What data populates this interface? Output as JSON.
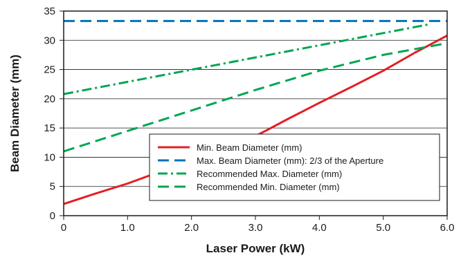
{
  "chart_data": {
    "type": "line",
    "title": "",
    "xlabel": "Laser Power (kW)",
    "ylabel": "Beam Diameter (mm)",
    "xlim": [
      0,
      6.0
    ],
    "ylim": [
      0,
      35
    ],
    "x_ticks": [
      0,
      1.0,
      2.0,
      3.0,
      4.0,
      5.0,
      6.0
    ],
    "x_tick_labels": [
      "0",
      "1.0",
      "2.0",
      "3.0",
      "4.0",
      "5.0",
      "6.0"
    ],
    "y_ticks": [
      0,
      5,
      10,
      15,
      20,
      25,
      30,
      35
    ],
    "y_tick_labels": [
      "0",
      "5",
      "10",
      "15",
      "20",
      "25",
      "30",
      "35"
    ],
    "grid": "horizontal",
    "legend_position": "bottom-right",
    "series": [
      {
        "name": "Min. Beam Diameter (mm)",
        "color": "#e31e24",
        "style": "solid",
        "x": [
          0,
          0.5,
          1.0,
          1.5,
          2.0,
          2.5,
          3.0,
          3.5,
          4.0,
          4.5,
          5.0,
          5.5,
          6.0
        ],
        "y": [
          2.0,
          3.8,
          5.5,
          7.5,
          9.5,
          11.4,
          13.6,
          16.5,
          19.3,
          22.0,
          24.8,
          27.9,
          30.8
        ]
      },
      {
        "name": "Max. Beam Diameter (mm): 2/3 of the Aperture",
        "color": "#0072bc",
        "style": "dashed",
        "x": [
          0,
          6.0
        ],
        "y": [
          33.3,
          33.3
        ]
      },
      {
        "name": "Recommended Max. Diameter (mm)",
        "color": "#00a651",
        "style": "dashdot",
        "x": [
          0,
          5.7
        ],
        "y": [
          20.8,
          32.7
        ]
      },
      {
        "name": "Recommended Min. Diameter (mm)",
        "color": "#00a651",
        "style": "dashed",
        "x": [
          0,
          1.0,
          2.0,
          3.0,
          4.0,
          5.0,
          6.0
        ],
        "y": [
          11.0,
          14.5,
          18.0,
          21.5,
          24.8,
          27.5,
          29.5
        ]
      }
    ]
  }
}
